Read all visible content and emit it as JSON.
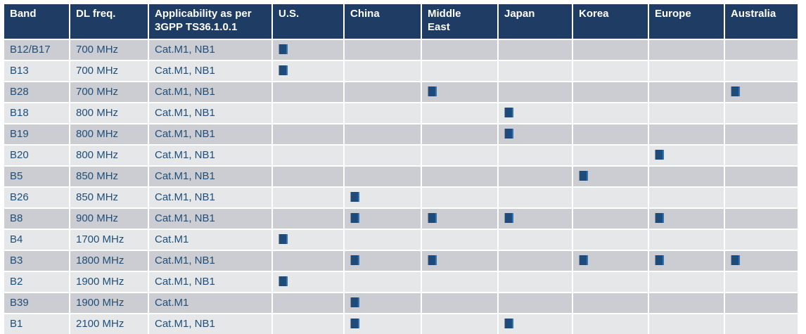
{
  "table": {
    "columns": [
      {
        "key": "band",
        "label": "Band"
      },
      {
        "key": "dl-freq",
        "label": "DL freq."
      },
      {
        "key": "applicability",
        "label": "Applicability as per 3GPP TS36.1.0.1"
      },
      {
        "key": "us",
        "label": "U.S."
      },
      {
        "key": "china",
        "label": "China"
      },
      {
        "key": "middle-east",
        "label": "Middle East"
      },
      {
        "key": "japan",
        "label": "Japan"
      },
      {
        "key": "korea",
        "label": "Korea"
      },
      {
        "key": "europe",
        "label": "Europe"
      },
      {
        "key": "australia",
        "label": "Australia"
      }
    ],
    "region_keys": [
      "us",
      "china",
      "middle-east",
      "japan",
      "korea",
      "europe",
      "australia"
    ],
    "rows": [
      {
        "band": "B12/B17",
        "freq": "700 MHz",
        "applicability": "Cat.M1, NB1",
        "regions": [
          1,
          0,
          0,
          0,
          0,
          0,
          0
        ]
      },
      {
        "band": "B13",
        "freq": "700 MHz",
        "applicability": "Cat.M1, NB1",
        "regions": [
          1,
          0,
          0,
          0,
          0,
          0,
          0
        ]
      },
      {
        "band": "B28",
        "freq": "700 MHz",
        "applicability": "Cat.M1, NB1",
        "regions": [
          0,
          0,
          1,
          0,
          0,
          0,
          1
        ]
      },
      {
        "band": "B18",
        "freq": "800 MHz",
        "applicability": "Cat.M1, NB1",
        "regions": [
          0,
          0,
          0,
          1,
          0,
          0,
          0
        ]
      },
      {
        "band": "B19",
        "freq": "800 MHz",
        "applicability": "Cat.M1, NB1",
        "regions": [
          0,
          0,
          0,
          1,
          0,
          0,
          0
        ]
      },
      {
        "band": "B20",
        "freq": "800 MHz",
        "applicability": "Cat.M1, NB1",
        "regions": [
          0,
          0,
          0,
          0,
          0,
          1,
          0
        ]
      },
      {
        "band": "B5",
        "freq": "850 MHz",
        "applicability": "Cat.M1, NB1",
        "regions": [
          0,
          0,
          0,
          0,
          1,
          0,
          0
        ]
      },
      {
        "band": "B26",
        "freq": "850 MHz",
        "applicability": "Cat.M1, NB1",
        "regions": [
          0,
          1,
          0,
          0,
          0,
          0,
          0
        ]
      },
      {
        "band": "B8",
        "freq": "900 MHz",
        "applicability": "Cat.M1, NB1",
        "regions": [
          0,
          1,
          1,
          1,
          0,
          1,
          0
        ]
      },
      {
        "band": "B4",
        "freq": "1700 MHz",
        "applicability": "Cat.M1",
        "regions": [
          1,
          0,
          0,
          0,
          0,
          0,
          0
        ]
      },
      {
        "band": "B3",
        "freq": "1800 MHz",
        "applicability": "Cat.M1, NB1",
        "regions": [
          0,
          1,
          1,
          0,
          1,
          1,
          1
        ]
      },
      {
        "band": "B2",
        "freq": "1900 MHz",
        "applicability": "Cat.M1, NB1",
        "regions": [
          1,
          0,
          0,
          0,
          0,
          0,
          0
        ]
      },
      {
        "band": "B39",
        "freq": "1900 MHz",
        "applicability": "Cat.M1",
        "regions": [
          0,
          1,
          0,
          0,
          0,
          0,
          0
        ]
      },
      {
        "band": "B1",
        "freq": "2100 MHz",
        "applicability": "Cat.M1, NB1",
        "regions": [
          0,
          1,
          0,
          1,
          0,
          0,
          0
        ]
      }
    ]
  },
  "icons": {
    "applicable_mark": "filled-square"
  },
  "colors": {
    "header_bg": "#1F3C64",
    "header_text": "#FFFFFF",
    "row_odd_bg": "#CBCDD2",
    "row_even_bg": "#E6E7E9",
    "body_text": "#1F4E79",
    "mark_fill": "#1F4B7A",
    "mark_edge_light": "#2E74B5",
    "background": "#FFFFFF"
  }
}
